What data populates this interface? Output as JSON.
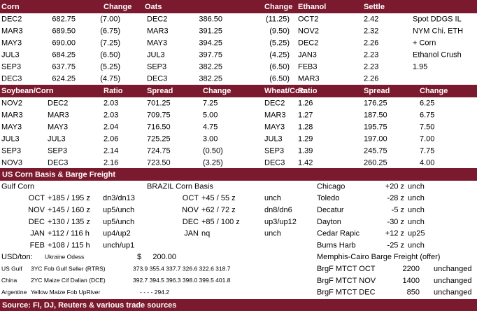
{
  "corn_oats_ethanol": {
    "header": [
      "Corn",
      "Change",
      "Oats",
      "Change",
      "Ethanol",
      "Settle"
    ],
    "rows": [
      [
        "DEC2",
        "682.75",
        "(7.00)",
        "DEC2",
        "386.50",
        "(11.25)",
        "OCT2",
        "2.42",
        "Spot DDGS IL"
      ],
      [
        "MAR3",
        "689.50",
        "(6.75)",
        "MAR3",
        "391.25",
        "(9.50)",
        "NOV2",
        "2.32",
        "NYM Chi. ETH"
      ],
      [
        "MAY3",
        "690.00",
        "(7.25)",
        "MAY3",
        "394.25",
        "(5.25)",
        "DEC2",
        "2.26",
        "+ Corn"
      ],
      [
        "JUL3",
        "684.25",
        "(6.50)",
        "JUL3",
        "397.75",
        "(4.25)",
        "JAN3",
        "2.23",
        "Ethanol Crush"
      ],
      [
        "SEP3",
        "637.75",
        "(5.25)",
        "SEP3",
        "382.25",
        "(6.50)",
        "FEB3",
        "2.23",
        "1.95"
      ],
      [
        "DEC3",
        "624.25",
        "(4.75)",
        "DEC3",
        "382.25",
        "(6.50)",
        "MAR3",
        "2.26"
      ]
    ]
  },
  "spreads": {
    "header": [
      "Soybean/Corn",
      "Ratio",
      "Spread",
      "Change",
      "Wheat/Corn",
      "Ratio",
      "Spread",
      "Change"
    ],
    "rows": [
      [
        "NOV2",
        "DEC2",
        "2.03",
        "701.25",
        "7.25",
        "DEC2",
        "1.26",
        "176.25",
        "6.25"
      ],
      [
        "MAR3",
        "MAR3",
        "2.03",
        "709.75",
        "5.00",
        "MAR3",
        "1.27",
        "187.50",
        "6.75"
      ],
      [
        "MAY3",
        "MAY3",
        "2.04",
        "716.50",
        "4.75",
        "MAY3",
        "1.28",
        "195.75",
        "7.50"
      ],
      [
        "JUL3",
        "JUL3",
        "2.06",
        "725.25",
        "3.00",
        "JUL3",
        "1.29",
        "197.00",
        "7.00"
      ],
      [
        "SEP3",
        "SEP3",
        "2.14",
        "724.75",
        "(0.50)",
        "SEP3",
        "1.39",
        "245.75",
        "7.75"
      ],
      [
        "NOV3",
        "DEC3",
        "2.16",
        "723.50",
        "(3.25)",
        "DEC3",
        "1.42",
        "260.25",
        "4.00"
      ]
    ]
  },
  "basis": {
    "title": "US Corn Basis & Barge Freight",
    "rows": [
      [
        "Gulf Corn",
        "BRAZIL Corn Basis",
        "Chicago",
        "+20 z",
        "unch"
      ],
      [
        "OCT",
        "+185 / 195 z",
        "dn3/dn13",
        "OCT",
        "+45 / 55 z",
        "unch",
        "Toledo",
        "-28 z",
        "unch"
      ],
      [
        "NOV",
        "+145 / 160 z",
        "up5/unch",
        "NOV",
        "+62 / 72 z",
        "dn8/dn6",
        "Decatur",
        "-5 z",
        "unch"
      ],
      [
        "DEC",
        "+130 / 135 z",
        "up5/unch",
        "DEC",
        "+85 / 100 z",
        "up3/up12",
        "Dayton",
        "-30 z",
        "unch"
      ],
      [
        "JAN",
        "+112  / 116 h",
        "up4/up2",
        "JAN",
        "nq",
        "unch",
        "Cedar Rapic",
        "+12 z",
        "up25"
      ],
      [
        "FEB",
        "+108  / 115 h",
        "unch/up1",
        "Burns Harb",
        "-25 z",
        "unch"
      ],
      [
        "USD/ton:",
        "Ukraine Odess",
        "$",
        "200.00",
        "Memphis-Cairo Barge Freight (offer)"
      ],
      [
        "US Gulf",
        "3YC Fob Gulf Seller (RTRS)",
        "373.9 355.4 337.7 326.6 322.6 318.7",
        "BrgF MTCT OCT",
        "2200",
        "unchanged"
      ],
      [
        "China",
        "2YC Maize Cif Dalian (DCE)",
        "392.7 394.5 396.3 398.0 399.5 401.8",
        "BrgF MTCT NOV",
        "1400",
        "unchanged"
      ],
      [
        "Argentine",
        "Yellow Maize Fob UpRiver",
        "-    -    -    -   294.2",
        "BrgF MTCT DEC",
        "850",
        "unchanged"
      ]
    ]
  },
  "footer": "Source: FI, DJ, Reuters & various trade sources"
}
